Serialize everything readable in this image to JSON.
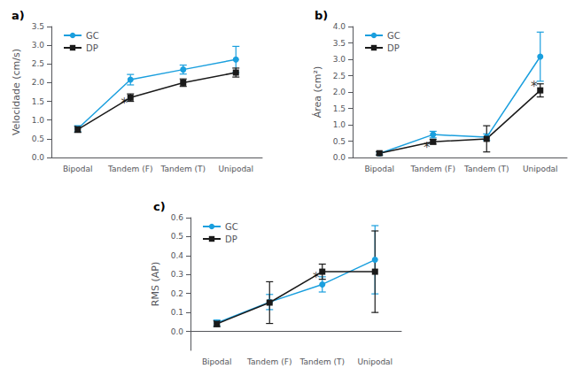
{
  "chart_data": [
    {
      "type": "line",
      "title": "a)",
      "ylabel": "Velocidade (cm/s)",
      "categories": [
        "Bipodal",
        "Tandem (F)",
        "Tandem (T)",
        "Unipodal"
      ],
      "series": [
        {
          "name": "GC",
          "color": "#1a9fde",
          "marker": "circle",
          "values": [
            0.77,
            2.08,
            2.35,
            2.62
          ],
          "errors": [
            0.08,
            0.14,
            0.12,
            0.35
          ]
        },
        {
          "name": "DP",
          "color": "#1a1a1a",
          "marker": "square",
          "values": [
            0.75,
            1.6,
            2.0,
            2.27
          ],
          "errors": [
            0.08,
            0.1,
            0.1,
            0.12
          ]
        }
      ],
      "ylim": [
        0,
        3.5
      ],
      "yticks": [
        {
          "value": 0,
          "label": "0.0"
        },
        0.5,
        {
          "value": 1.0,
          "label": "1.0"
        },
        1.5,
        {
          "value": 2.0,
          "label": "2.0"
        },
        2.5,
        {
          "value": 3.0,
          "label": "3.0"
        },
        3.5
      ],
      "annotations": [
        {
          "text": "*",
          "x": "Tandem (F)",
          "y": 1.4
        }
      ],
      "grid": false,
      "legend": "upper left"
    },
    {
      "type": "line",
      "title": "b)",
      "ylabel": "Área (cm²)",
      "categories": [
        "Bipodal",
        "Tandem (F)",
        "Tandem (T)",
        "Unipodal"
      ],
      "series": [
        {
          "name": "GC",
          "color": "#1a9fde",
          "marker": "circle",
          "values": [
            0.12,
            0.7,
            0.62,
            3.08
          ],
          "errors": [
            0.05,
            0.1,
            0.1,
            0.75
          ]
        },
        {
          "name": "DP",
          "color": "#1a1a1a",
          "marker": "square",
          "values": [
            0.13,
            0.48,
            0.57,
            2.05
          ],
          "errors": [
            0.05,
            0.07,
            0.4,
            0.2
          ]
        }
      ],
      "ylim": [
        0,
        4
      ],
      "yticks": [
        {
          "value": 0,
          "label": "0.0"
        },
        0.5,
        {
          "value": 1.0,
          "label": "1.0"
        },
        1.5,
        {
          "value": 2.0,
          "label": "2.0"
        },
        2.5,
        {
          "value": 3.0,
          "label": "3.0"
        },
        3.5,
        {
          "value": 4.0,
          "label": "4.0"
        }
      ],
      "annotations": [
        {
          "text": "*",
          "x": "Tandem (F)",
          "y": 0.26
        },
        {
          "text": "*",
          "x": "Unipodal",
          "y": 2.13
        }
      ],
      "grid": false,
      "legend": "upper left"
    },
    {
      "type": "line",
      "title": "c)",
      "ylabel": "RMS (AP)",
      "categories": [
        "Bipodal",
        "Tandem (F)",
        "Tandem (T)",
        "Unipodal"
      ],
      "series": [
        {
          "name": "GC",
          "color": "#1a9fde",
          "marker": "circle",
          "values": [
            0.045,
            0.155,
            0.248,
            0.378
          ],
          "errors": [
            0.015,
            0.04,
            0.04,
            0.18
          ]
        },
        {
          "name": "DP",
          "color": "#1a1a1a",
          "marker": "square",
          "values": [
            0.04,
            0.152,
            0.315,
            0.315
          ],
          "errors": [
            0.015,
            0.11,
            0.04,
            0.215
          ]
        }
      ],
      "ylim": [
        -0.1,
        0.6
      ],
      "yticks": [
        {
          "value": 0.0,
          "label": "0.0"
        },
        0.1,
        0.2,
        0.3,
        0.4,
        0.5,
        0.6
      ],
      "annotations": [
        {
          "text": "*",
          "x": "Tandem (T)",
          "y": 0.277
        }
      ],
      "grid": false,
      "legend": "upper left"
    }
  ]
}
